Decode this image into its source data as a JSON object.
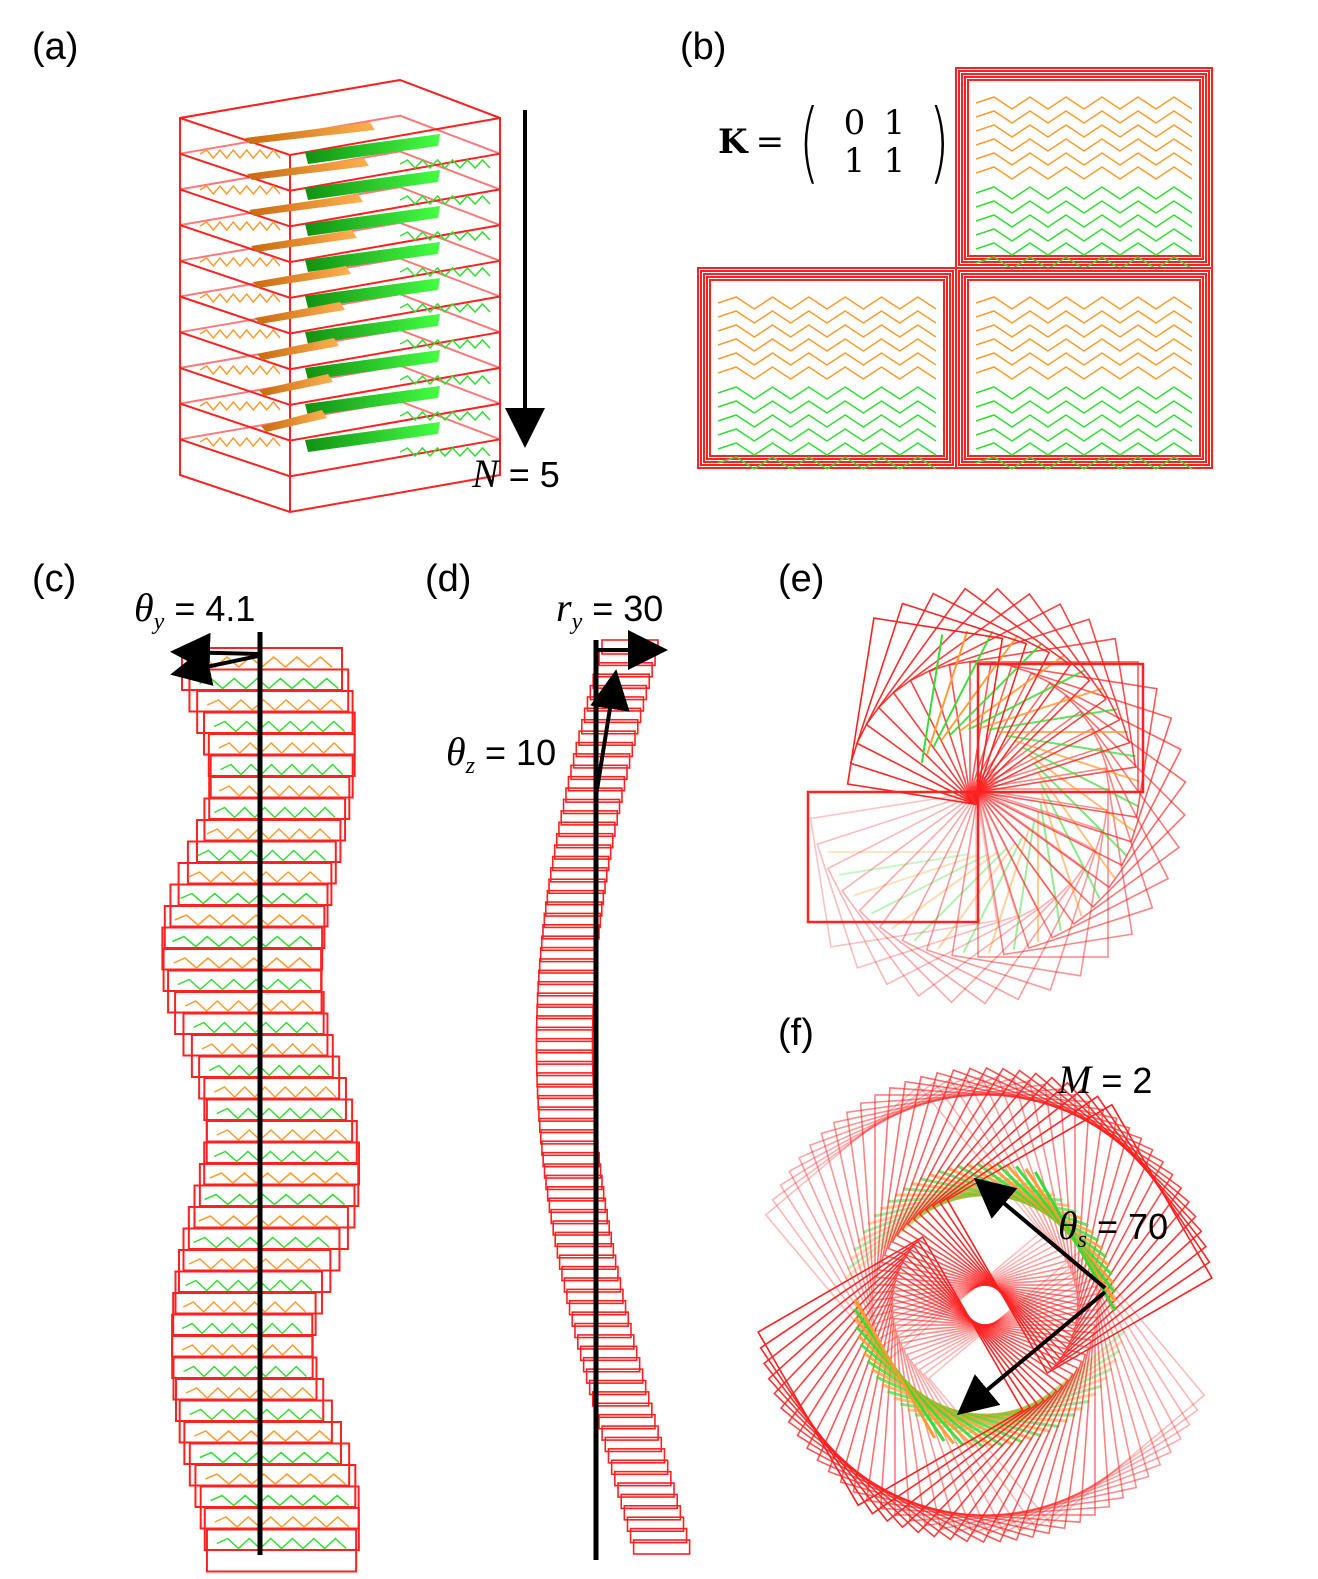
{
  "panels": {
    "a": {
      "label": "(a)",
      "annotation_symbol": "N",
      "annotation_value": "= 5"
    },
    "b": {
      "label": "(b)",
      "matrix_symbol": "K",
      "matrix_equals": "=",
      "matrix": [
        "0",
        "1",
        "1",
        "1"
      ]
    },
    "c": {
      "label": "(c)",
      "annotation_symbol": "θ",
      "annotation_sub": "y",
      "annotation_value": "= 4.1"
    },
    "d": {
      "label": "(d)",
      "annotation1_symbol": "r",
      "annotation1_sub": "y",
      "annotation1_value": "= 30",
      "annotation2_symbol": "θ",
      "annotation2_sub": "z",
      "annotation2_value": "= 10"
    },
    "e": {
      "label": "(e)"
    },
    "f": {
      "label": "(f)",
      "annotation1_symbol": "M",
      "annotation1_value": "= 2",
      "annotation2_symbol": "θ",
      "annotation2_sub": "s",
      "annotation2_value": "= 70"
    }
  },
  "colors": {
    "box": "#ff2020",
    "strand_a": "#ff9a2e",
    "strand_b": "#33dd33",
    "arrow": "#000000"
  }
}
